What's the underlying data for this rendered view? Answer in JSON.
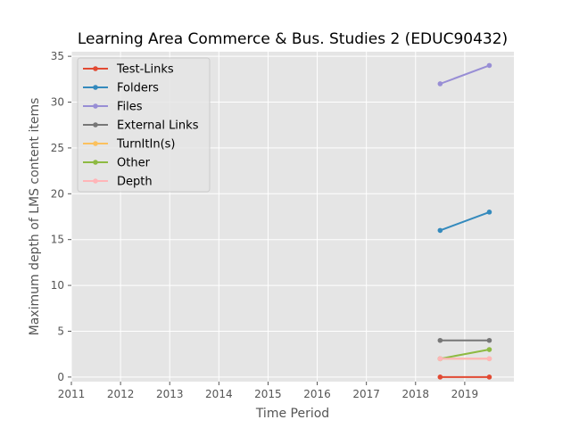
{
  "chart_data": {
    "type": "line",
    "title": "Learning Area Commerce & Bus. Studies 2 (EDUC90432)",
    "xlabel": "Time Period",
    "ylabel": "Maximum depth of LMS content items",
    "xlim": [
      2011,
      2020
    ],
    "ylim": [
      -0.5,
      35.5
    ],
    "x_ticks": [
      "2011",
      "2012",
      "2013",
      "2014",
      "2015",
      "2016",
      "2017",
      "2018",
      "2019"
    ],
    "y_ticks": [
      "0",
      "5",
      "10",
      "15",
      "20",
      "25",
      "30",
      "35"
    ],
    "grid": true,
    "legend_position": "upper left",
    "series": [
      {
        "name": "Test-Links",
        "color": "#E24A33",
        "x": [
          2018.5,
          2019.5
        ],
        "y": [
          0,
          0
        ]
      },
      {
        "name": "Folders",
        "color": "#348ABD",
        "x": [
          2018.5,
          2019.5
        ],
        "y": [
          16,
          18
        ]
      },
      {
        "name": "Files",
        "color": "#988ED5",
        "x": [
          2018.5,
          2019.5
        ],
        "y": [
          32,
          34
        ]
      },
      {
        "name": "External Links",
        "color": "#777777",
        "x": [
          2018.5,
          2019.5
        ],
        "y": [
          4,
          4
        ]
      },
      {
        "name": "TurnItIn(s)",
        "color": "#FBC15E",
        "x": [
          2018.5,
          2019.5
        ],
        "y": [
          2,
          2
        ]
      },
      {
        "name": "Other",
        "color": "#8EBA42",
        "x": [
          2018.5,
          2019.5
        ],
        "y": [
          2,
          3
        ]
      },
      {
        "name": "Depth",
        "color": "#FFB5B8",
        "x": [
          2018.5,
          2019.5
        ],
        "y": [
          2,
          2
        ]
      }
    ]
  }
}
